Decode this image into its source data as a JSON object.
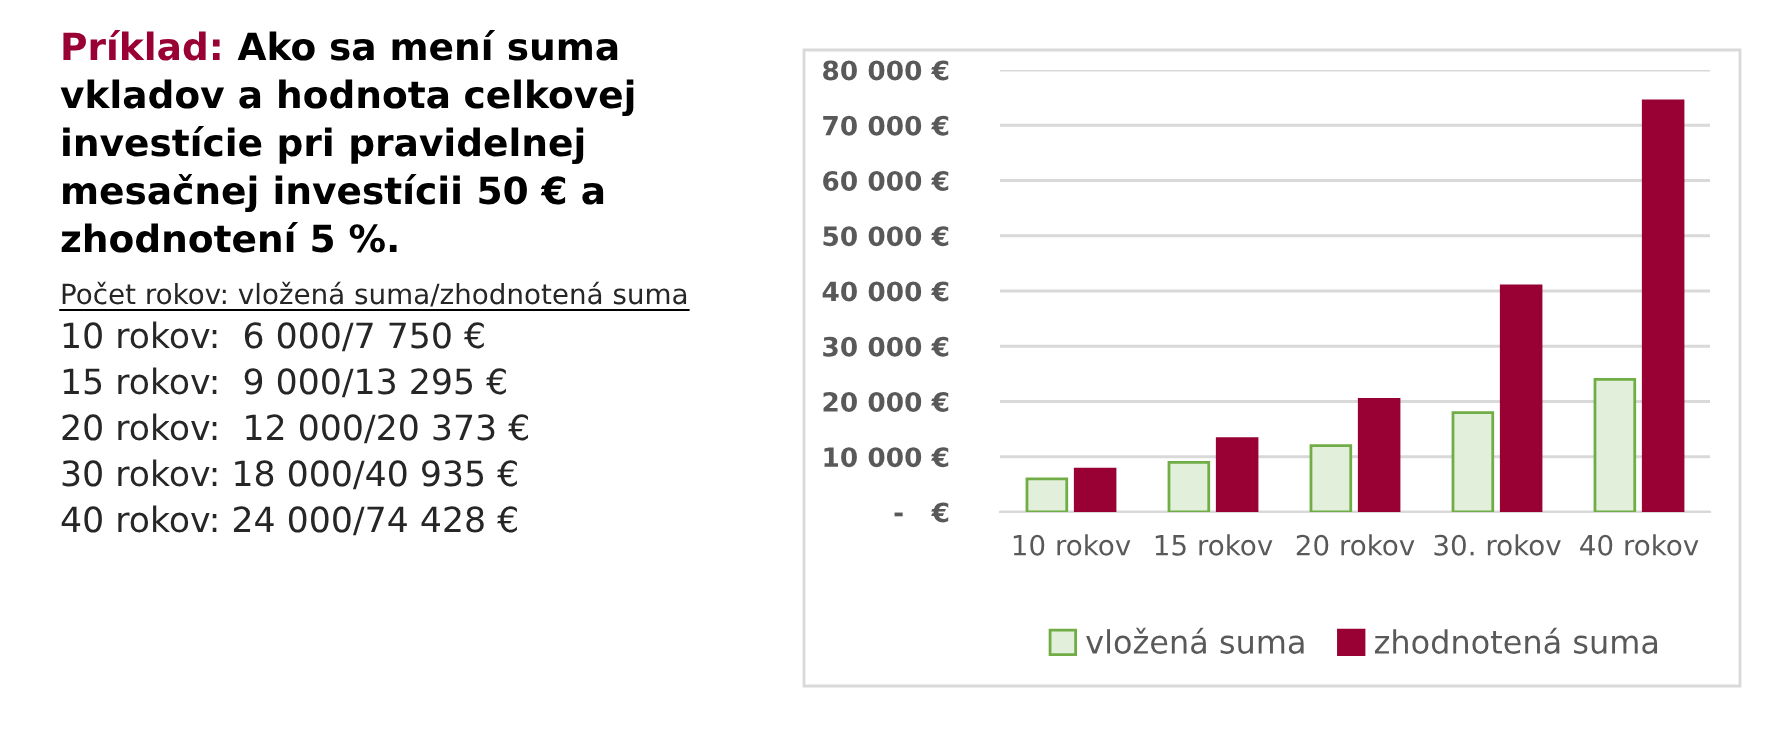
{
  "chart_data": {
    "type": "bar",
    "title": "Príklad: Ako sa mení suma vkladov a hodnota celkovej investície pri pravidelnej mesačnej investícii 50 € a zhodnotení 5 %.",
    "annotations": [
      "Počet rokov: vložená suma/zhodnotená suma",
      "10 rokov:  6 000/7 750 €",
      "15 rokov:  9 000/13 295 €",
      "20 rokov:  12 000/20 373 €",
      "30 rokov: 18 000/40 935 €",
      "40 rokov: 24 000/74 428 €"
    ],
    "categories": [
      "10 rokov",
      "15 rokov",
      "20 rokov",
      "30. rokov",
      "40 rokov"
    ],
    "series": [
      {
        "name": "vložená suma",
        "color": "#e2efda",
        "values": [
          6000,
          9000,
          12000,
          18000,
          24000
        ]
      },
      {
        "name": "zhodnotená suma",
        "color": "#990033",
        "values": [
          7750,
          13295,
          20373,
          40935,
          74428
        ]
      }
    ],
    "ylim": [
      0,
      80000
    ],
    "yticks": [
      {
        "value": 0,
        "label": "-   €"
      },
      {
        "value": 10000,
        "label": "10 000 €"
      },
      {
        "value": 20000,
        "label": "20 000 €"
      },
      {
        "value": 30000,
        "label": "30 000 €"
      },
      {
        "value": 40000,
        "label": "40 000 €"
      },
      {
        "value": 50000,
        "label": "50 000 €"
      },
      {
        "value": 60000,
        "label": "60 000 €"
      },
      {
        "value": 70000,
        "label": "70 000 €"
      },
      {
        "value": 80000,
        "label": "80 000 €"
      }
    ],
    "grid": "y",
    "legend": "bottom"
  }
}
